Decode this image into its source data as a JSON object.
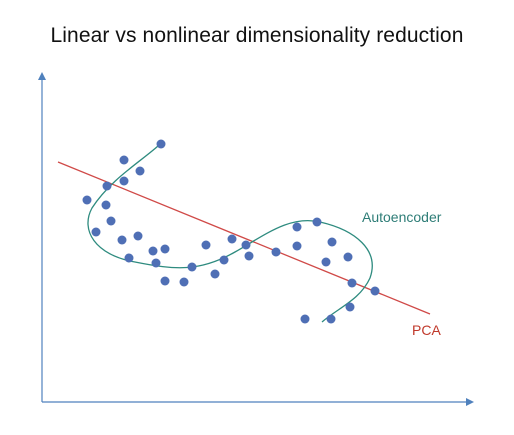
{
  "title": "Linear vs nonlinear dimensionality reduction",
  "labels": {
    "autoencoder": "Autoencoder",
    "pca": "PCA"
  },
  "colors": {
    "axis": "#4f81bd",
    "points": "#4f6fb5",
    "pca_line": "#d04a48",
    "autoencoder_curve": "#2e8b7f",
    "autoencoder_label": "#2e7d77",
    "pca_label": "#c0392b"
  }
}
